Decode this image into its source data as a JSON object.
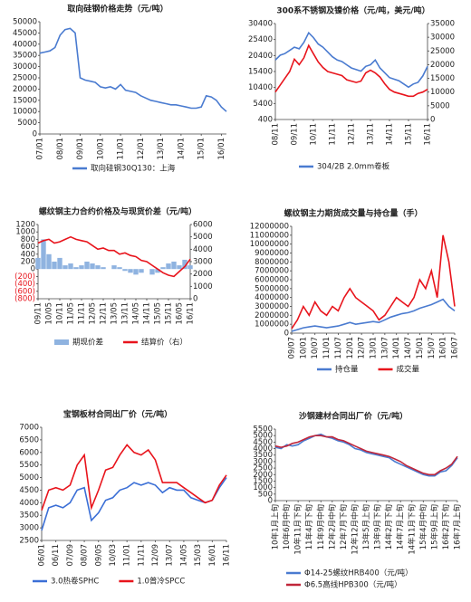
{
  "chart_data": [
    {
      "type": "line",
      "title": "取向硅钢价格走势（元/吨）",
      "categories": [
        "07/01",
        null,
        null,
        null,
        "08/01",
        null,
        null,
        null,
        "09/01",
        null,
        null,
        null,
        "10/01",
        null,
        null,
        null,
        "11/01",
        null,
        null,
        null,
        "12/01",
        null,
        null,
        null,
        "13/01",
        null,
        null,
        null,
        "14/01",
        null,
        null,
        null,
        "15/01",
        null,
        null,
        null,
        "16/01",
        null
      ],
      "series": [
        {
          "name": "取向硅钢30Q130：上海",
          "color": "#4a7bd0",
          "values": [
            36000,
            36500,
            37000,
            38500,
            44000,
            46500,
            47000,
            45000,
            25000,
            24000,
            23500,
            23000,
            21000,
            20500,
            21000,
            20000,
            22000,
            19500,
            19000,
            18500,
            17000,
            16000,
            15000,
            14500,
            14000,
            13500,
            13000,
            13000,
            12500,
            12000,
            11500,
            11500,
            12000,
            17000,
            16500,
            15000,
            12000,
            10000
          ]
        }
      ],
      "ylim": [
        0,
        50000
      ],
      "yticks": [
        0,
        5000,
        10000,
        15000,
        20000,
        25000,
        30000,
        35000,
        40000,
        45000,
        50000
      ]
    },
    {
      "type": "line",
      "title": "300系不锈钢及镍价格（元/吨，美元/吨）",
      "categories": [
        "08/11",
        null,
        null,
        null,
        "09/11",
        null,
        null,
        null,
        "10/11",
        null,
        null,
        null,
        "11/11",
        null,
        null,
        null,
        "12/11",
        null,
        null,
        null,
        "13/11",
        null,
        null,
        null,
        "14/11",
        null,
        null,
        null,
        "15/11",
        null,
        null,
        null,
        "16/11"
      ],
      "series": [
        {
          "name": "304/2B 2.0mm卷板",
          "color": "#4a7bd0",
          "values": [
            19000,
            20500,
            21000,
            22000,
            23000,
            22500,
            24500,
            27500,
            26000,
            24000,
            23000,
            21500,
            20000,
            19000,
            18500,
            17500,
            16500,
            16000,
            15500,
            17000,
            17500,
            19000,
            16500,
            15000,
            13500,
            13000,
            12500,
            11500,
            10500,
            11500,
            12000,
            14000,
            17000
          ]
        },
        {
          "color": "#e8141c",
          "axis": "y2",
          "values": [
            10000,
            12500,
            15000,
            17500,
            22000,
            20000,
            22500,
            27000,
            24000,
            21000,
            19000,
            17500,
            17000,
            16500,
            16000,
            14500,
            14000,
            13500,
            14000,
            17000,
            18000,
            17000,
            15500,
            13000,
            11000,
            10000,
            9500,
            9000,
            8500,
            8500,
            9500,
            10000,
            11000
          ]
        }
      ],
      "ylim": [
        400,
        30400
      ],
      "yticks": [
        400,
        5400,
        10400,
        15400,
        20400,
        25400,
        30400
      ],
      "y2lim": [
        0,
        35000
      ],
      "y2ticks": [
        0,
        5000,
        10000,
        15000,
        20000,
        25000,
        30000,
        35000
      ]
    },
    {
      "type": "combo",
      "title": "螺纹钢主力合约价格及与现货价差（元/吨）",
      "categories": [
        "09/11",
        null,
        "10/05",
        null,
        "10/11",
        null,
        "11/05",
        null,
        "11/11",
        null,
        "12/05",
        null,
        "12/11",
        null,
        "13/05",
        null,
        "13/11",
        null,
        "14/05",
        null,
        "14/11",
        null,
        "15/05",
        null,
        "15/11",
        null,
        "16/05",
        null,
        "16/11"
      ],
      "series": [
        {
          "name": "期现价差",
          "color": "#8fb3e0",
          "type": "bar",
          "values": [
            300,
            800,
            400,
            200,
            300,
            100,
            150,
            50,
            100,
            200,
            150,
            100,
            50,
            0,
            100,
            50,
            -50,
            -100,
            -150,
            -100,
            0,
            -150,
            -100,
            50,
            150,
            200,
            100,
            250,
            100
          ]
        },
        {
          "name": "结算价（右）",
          "color": "#e8141c",
          "type": "line",
          "axis": "y2",
          "values": [
            4500,
            4700,
            4800,
            4500,
            4600,
            4800,
            5000,
            4800,
            4700,
            4600,
            4300,
            4000,
            4100,
            3900,
            3900,
            3600,
            3700,
            3500,
            3400,
            3100,
            3000,
            2700,
            2400,
            2100,
            1900,
            1800,
            2200,
            2600,
            3200
          ]
        }
      ],
      "ylim": [
        -800,
        1200
      ],
      "yticks": [
        {
          "value": -800,
          "label": "(800)"
        },
        {
          "value": -600,
          "label": "(600)"
        },
        {
          "value": -400,
          "label": "(400)"
        },
        {
          "value": -200,
          "label": "(200)"
        },
        0,
        200,
        400,
        600,
        800,
        1000,
        1200
      ],
      "negative_tick_color": "#e8141c",
      "y2lim": [
        0,
        6000
      ],
      "y2ticks": [
        0,
        1000,
        2000,
        3000,
        4000,
        5000,
        6000
      ]
    },
    {
      "type": "line",
      "title": "螺纹钢主力期货成交量与持仓量（手）",
      "categories": [
        "09/07",
        null,
        "10/01",
        null,
        "10/07",
        null,
        "11/01",
        null,
        "11/07",
        null,
        "12/01",
        null,
        "12/07",
        null,
        "13/01",
        null,
        "13/07",
        null,
        "14/01",
        null,
        "14/07",
        null,
        "15/01",
        null,
        "15/07",
        null,
        "16/01",
        null,
        "16/07"
      ],
      "series": [
        {
          "name": "持仓量",
          "color": "#4a7bd0",
          "values": [
            200000,
            400000,
            600000,
            700000,
            800000,
            700000,
            600000,
            700000,
            800000,
            1000000,
            1200000,
            1000000,
            1100000,
            1200000,
            1300000,
            1200000,
            1500000,
            1800000,
            2000000,
            2200000,
            2300000,
            2500000,
            2800000,
            3000000,
            3200000,
            3500000,
            3800000,
            3000000,
            2500000
          ]
        },
        {
          "name": "成交量",
          "color": "#e8141c",
          "values": [
            500000,
            1500000,
            3000000,
            2000000,
            3500000,
            2500000,
            2000000,
            3000000,
            2500000,
            4000000,
            5000000,
            4000000,
            3500000,
            3000000,
            2500000,
            1500000,
            2000000,
            3000000,
            4000000,
            3500000,
            3000000,
            4000000,
            6000000,
            5000000,
            7000000,
            4000000,
            11000000,
            8000000,
            3000000
          ]
        }
      ],
      "ylim": [
        0,
        12000000
      ],
      "yticks": [
        0,
        1000000,
        2000000,
        3000000,
        4000000,
        5000000,
        6000000,
        7000000,
        8000000,
        9000000,
        10000000,
        11000000,
        12000000
      ]
    },
    {
      "type": "line",
      "title": "宝钢板材合同出厂价（元/吨）",
      "categories": [
        "06/01",
        null,
        "06/11",
        null,
        "07/09",
        null,
        "08/07",
        null,
        "09/05",
        null,
        "10/03",
        null,
        "11/01",
        null,
        "11/11",
        null,
        "12/09",
        null,
        "13/07",
        null,
        "14/05",
        null,
        "15/03",
        null,
        "16/01",
        null,
        "16/11"
      ],
      "series": [
        {
          "name": "3.0热卷SPHC",
          "color": "#3b6fd6",
          "values": [
            2900,
            3800,
            3900,
            3800,
            4000,
            4500,
            4600,
            3300,
            3600,
            4100,
            4200,
            4500,
            4600,
            4800,
            4700,
            4800,
            4700,
            4400,
            4600,
            4500,
            4500,
            4200,
            4100,
            4000,
            4100,
            4600,
            5000
          ]
        },
        {
          "name": "1.0普冷SPCC",
          "color": "#e8141c",
          "values": [
            3700,
            4500,
            4600,
            4500,
            4700,
            5500,
            5900,
            3800,
            4500,
            5300,
            5400,
            5900,
            6300,
            6000,
            5900,
            6100,
            5700,
            4800,
            4800,
            4800,
            4600,
            4400,
            4200,
            4000,
            4100,
            4700,
            5100
          ]
        }
      ],
      "ylim": [
        2500,
        7000
      ],
      "yticks": [
        2500,
        3000,
        3500,
        4000,
        4500,
        5000,
        5500,
        6000,
        6500,
        7000
      ]
    },
    {
      "type": "line",
      "title": "沙钢建材合同出厂价（元/吨）",
      "categories": [
        "10年1月上旬",
        null,
        "10年6月中旬",
        null,
        "10年11月下旬",
        null,
        "11年4月下旬",
        null,
        "11年9月中旬",
        null,
        "12年2月中旬",
        null,
        "12年7月下旬",
        null,
        "12年12月中旬",
        null,
        "13年5月上旬",
        null,
        "13年9月下旬",
        null,
        "14年2月下旬",
        null,
        "14年7月上旬",
        null,
        "14年11月下旬",
        null,
        "15年4月中旬",
        null,
        "15年9月上旬",
        null,
        "16年2月下旬",
        null,
        "16年7月上旬"
      ],
      "series": [
        {
          "name": "Φ14-25螺纹HRB400（元/吨）",
          "color": "#4a7bd0",
          "values": [
            4100,
            4000,
            4300,
            4200,
            4300,
            4600,
            4800,
            5000,
            5100,
            4900,
            4800,
            4600,
            4500,
            4300,
            4000,
            3900,
            3700,
            3600,
            3500,
            3400,
            3300,
            3000,
            2800,
            2600,
            2400,
            2200,
            2000,
            1900,
            1900,
            2200,
            2300,
            2700,
            3300
          ]
        },
        {
          "name": "Φ6.5高线HPB300（元/吨）",
          "color": "#c0263a",
          "values": [
            4200,
            4100,
            4200,
            4400,
            4500,
            4700,
            4900,
            5000,
            5000,
            4900,
            4900,
            4700,
            4600,
            4400,
            4200,
            4000,
            3800,
            3700,
            3600,
            3500,
            3400,
            3200,
            3000,
            2700,
            2500,
            2300,
            2100,
            2000,
            2000,
            2300,
            2500,
            2800,
            3400
          ]
        }
      ],
      "ylim": [
        0,
        5500
      ],
      "yticks": [
        0,
        500,
        1000,
        1500,
        2000,
        2500,
        3000,
        3500,
        4000,
        4500,
        5000,
        5500
      ]
    }
  ]
}
